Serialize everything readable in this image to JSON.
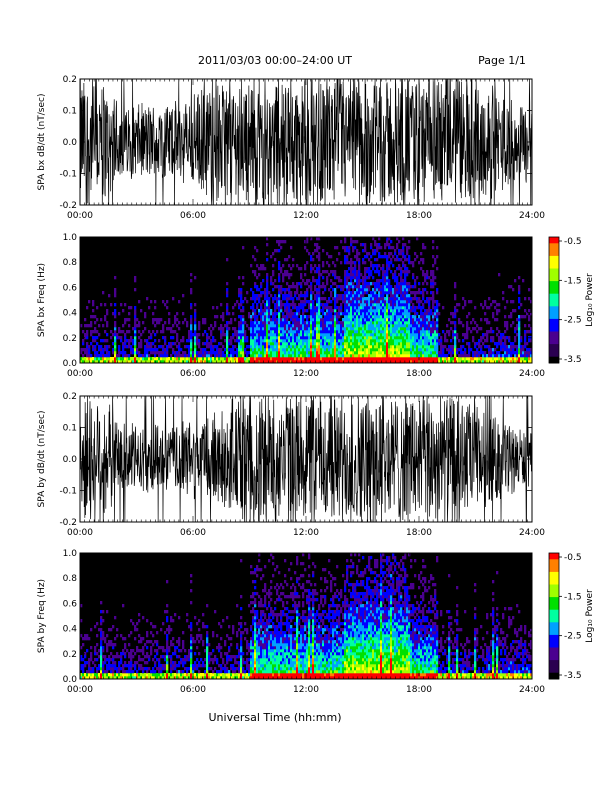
{
  "header": {
    "title": "2011/03/03  00:00–24:00 UT",
    "page": "Page 1/1"
  },
  "footer": {
    "xlabel": "Universal Time (hh:mm)"
  },
  "colors": {
    "colormap": [
      "#000000",
      "#2a0050",
      "#4b0090",
      "#0000ff",
      "#00a0ff",
      "#00ffa0",
      "#00e000",
      "#a0ff00",
      "#ffff00",
      "#ff8000",
      "#ff0000"
    ]
  },
  "chart_data": [
    {
      "type": "line",
      "ylabel": "SPA bx dB/dt (nT/sec)",
      "ylim": [
        -0.2,
        0.2
      ],
      "yticks": [
        "0.2",
        "0.1",
        "0.0",
        "-0.1",
        "-0.2"
      ],
      "xticks": [
        "00:00",
        "06:00",
        "12:00",
        "18:00",
        "24:00"
      ],
      "xlim_hours": [
        0,
        24
      ],
      "description_values": "dense oscillation, amplitude envelope by hour",
      "envelope_hours": [
        0,
        1,
        2,
        3,
        4,
        5,
        6,
        7,
        8,
        9,
        10,
        11,
        12,
        13,
        14,
        15,
        16,
        17,
        18,
        19,
        20,
        21,
        22,
        23,
        24
      ],
      "envelope_amplitude": [
        0.2,
        0.2,
        0.12,
        0.11,
        0.12,
        0.12,
        0.14,
        0.18,
        0.2,
        0.19,
        0.2,
        0.2,
        0.2,
        0.2,
        0.2,
        0.2,
        0.2,
        0.2,
        0.2,
        0.2,
        0.2,
        0.19,
        0.16,
        0.13,
        0.12
      ]
    },
    {
      "type": "heatmap",
      "ylabel": "SPA bx Freq (Hz)",
      "ylim": [
        0.0,
        1.0
      ],
      "yticks": [
        "1.0",
        "0.8",
        "0.6",
        "0.4",
        "0.2",
        "0.0"
      ],
      "xticks": [
        "00:00",
        "06:00",
        "12:00",
        "18:00",
        "24:00"
      ],
      "colorbar": {
        "label": "Log₁₀ Power",
        "ticks": [
          "-0.5",
          "-1.5",
          "-2.5",
          "-3.5"
        ],
        "range": [
          -3.5,
          -0.5
        ]
      }
    },
    {
      "type": "line",
      "ylabel": "SPA by dB/dt (nT/sec)",
      "ylim": [
        -0.2,
        0.2
      ],
      "yticks": [
        "0.2",
        "0.1",
        "0.0",
        "-0.1",
        "-0.2"
      ],
      "xticks": [
        "00:00",
        "06:00",
        "12:00",
        "18:00",
        "24:00"
      ],
      "xlim_hours": [
        0,
        24
      ],
      "envelope_hours": [
        0,
        1,
        2,
        3,
        4,
        5,
        6,
        7,
        8,
        9,
        10,
        11,
        12,
        13,
        14,
        15,
        16,
        17,
        18,
        19,
        20,
        21,
        22,
        23,
        24
      ],
      "envelope_amplitude": [
        0.2,
        0.2,
        0.12,
        0.1,
        0.1,
        0.1,
        0.12,
        0.14,
        0.17,
        0.19,
        0.2,
        0.2,
        0.2,
        0.2,
        0.2,
        0.2,
        0.2,
        0.2,
        0.2,
        0.2,
        0.19,
        0.16,
        0.13,
        0.1,
        0.08
      ]
    },
    {
      "type": "heatmap",
      "ylabel": "SPA by Freq (Hz)",
      "ylim": [
        0.0,
        1.0
      ],
      "yticks": [
        "1.0",
        "0.8",
        "0.6",
        "0.4",
        "0.2",
        "0.0"
      ],
      "xticks": [
        "00:00",
        "06:00",
        "12:00",
        "18:00",
        "24:00"
      ],
      "colorbar": {
        "label": "Log₁₀ Power",
        "ticks": [
          "-0.5",
          "-1.5",
          "-2.5",
          "-3.5"
        ],
        "range": [
          -3.5,
          -0.5
        ]
      }
    }
  ]
}
